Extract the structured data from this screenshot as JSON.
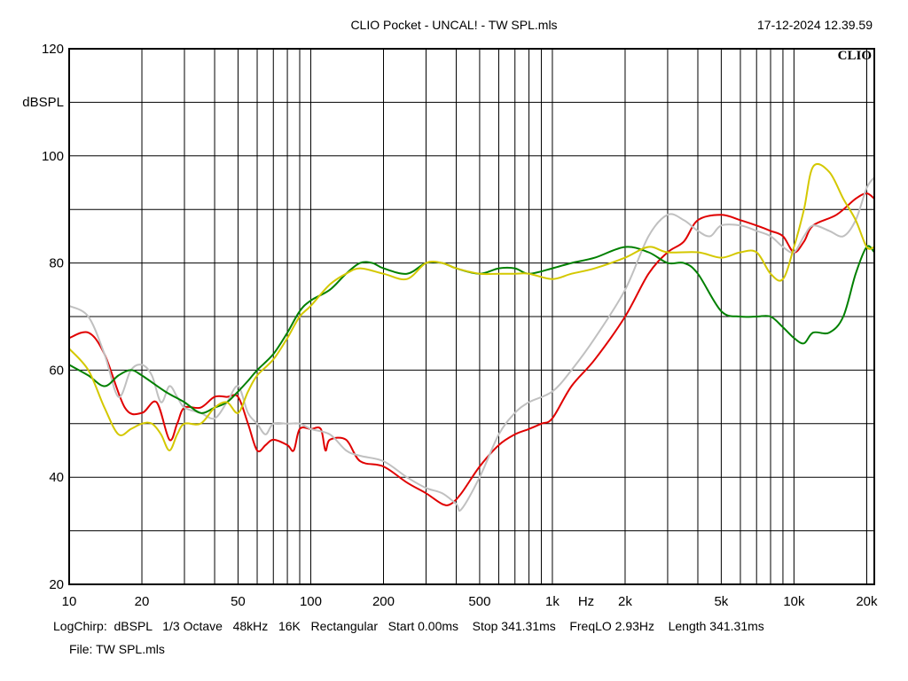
{
  "chart_data": {
    "type": "line",
    "title": "CLIO Pocket - UNCAL! - TW SPL.mls",
    "timestamp": "17-12-2024 12.39.59",
    "logo": "CLIO",
    "ylabel": "dBSPL",
    "xlabel": "Hz",
    "x_scale": "log",
    "xlim": [
      10,
      21500
    ],
    "ylim": [
      20,
      120
    ],
    "y_ticks": [
      "120",
      "100",
      "80",
      "60",
      "40",
      "20"
    ],
    "y_tick_values": [
      120,
      100,
      80,
      60,
      40,
      20
    ],
    "x_ticks": [
      "10",
      "20",
      "50",
      "100",
      "200",
      "500",
      "1k",
      "2k",
      "5k",
      "10k",
      "20k"
    ],
    "x_tick_values": [
      10,
      20,
      50,
      100,
      200,
      500,
      1000,
      2000,
      5000,
      10000,
      20000
    ],
    "grid": true,
    "footer_line1": "LogChirp:  dBSPL   1/3 Octave   48kHz   16K   Rectangular   Start 0.00ms    Stop 341.31ms    FreqLO 2.93Hz    Length 341.31ms",
    "footer_line2": "File: TW SPL.mls",
    "series": [
      {
        "color": "#e00000",
        "x": [
          10,
          12,
          14,
          17,
          20,
          23,
          26,
          28,
          30,
          35,
          40,
          45,
          50,
          55,
          60,
          65,
          70,
          80,
          85,
          90,
          100,
          110,
          115,
          120,
          140,
          160,
          200,
          250,
          300,
          350,
          380,
          420,
          500,
          600,
          700,
          800,
          900,
          1000,
          1200,
          1500,
          2000,
          2500,
          3000,
          3500,
          4000,
          5000,
          6000,
          7000,
          8000,
          9000,
          10000,
          11000,
          12000,
          15000,
          18000,
          20000,
          21500
        ],
        "y": [
          66,
          67,
          63,
          53,
          52,
          54,
          47,
          50,
          53,
          53,
          55,
          55,
          55,
          50,
          45,
          46,
          47,
          46,
          45,
          49,
          49,
          49,
          45,
          47,
          47,
          43,
          42,
          39,
          37,
          35,
          35,
          37,
          42,
          46,
          48,
          49,
          50,
          51,
          57,
          62,
          70,
          78,
          82,
          84,
          88,
          89,
          88,
          87,
          86,
          85,
          82,
          84,
          87,
          89,
          92,
          93,
          92
        ]
      },
      {
        "color": "#c0c0c0",
        "x": [
          10,
          12,
          14,
          16,
          18,
          20,
          22,
          24,
          26,
          28,
          30,
          35,
          40,
          45,
          50,
          55,
          60,
          65,
          70,
          80,
          90,
          100,
          120,
          140,
          160,
          200,
          250,
          300,
          350,
          400,
          420,
          500,
          600,
          700,
          800,
          1000,
          1200,
          1500,
          2000,
          2500,
          3000,
          3500,
          4000,
          4500,
          5000,
          6000,
          7000,
          8000,
          9000,
          10000,
          11000,
          12000,
          14000,
          16000,
          18000,
          20000,
          21500
        ],
        "y": [
          72,
          70,
          63,
          55,
          60,
          61,
          59,
          54,
          57,
          55,
          53,
          52,
          51,
          54,
          57,
          52,
          50,
          48,
          50,
          50,
          50,
          49,
          48,
          45,
          44,
          43,
          40,
          38,
          37,
          35,
          34,
          40,
          48,
          52,
          54,
          56,
          60,
          66,
          75,
          85,
          89,
          88,
          86,
          85,
          87,
          87,
          86,
          85,
          83,
          82,
          85,
          87,
          86,
          85,
          88,
          94,
          96
        ]
      },
      {
        "color": "#008000",
        "x": [
          10,
          12,
          14,
          16,
          18,
          20,
          25,
          30,
          35,
          40,
          45,
          50,
          55,
          60,
          70,
          80,
          90,
          100,
          120,
          140,
          160,
          180,
          200,
          250,
          300,
          350,
          400,
          500,
          600,
          700,
          800,
          1000,
          1200,
          1500,
          2000,
          2500,
          3000,
          3500,
          4000,
          5000,
          6000,
          7000,
          8000,
          9000,
          10000,
          11000,
          12000,
          14000,
          16000,
          18000,
          20000,
          21500
        ],
        "y": [
          61,
          59,
          57,
          59,
          60,
          59,
          56,
          54,
          52,
          53,
          54,
          56,
          58,
          60,
          63,
          67,
          71,
          73,
          75,
          78,
          80,
          80,
          79,
          78,
          80,
          80,
          79,
          78,
          79,
          79,
          78,
          79,
          80,
          81,
          83,
          82,
          80,
          80,
          78,
          71,
          70,
          70,
          70,
          68,
          66,
          65,
          67,
          67,
          70,
          78,
          83,
          82
        ]
      },
      {
        "color": "#d4c800",
        "x": [
          10,
          12,
          14,
          16,
          18,
          20,
          22,
          24,
          26,
          28,
          30,
          35,
          40,
          45,
          50,
          55,
          60,
          70,
          80,
          90,
          100,
          120,
          140,
          160,
          200,
          250,
          300,
          350,
          400,
          500,
          600,
          700,
          800,
          1000,
          1200,
          1500,
          2000,
          2500,
          3000,
          4000,
          5000,
          6000,
          7000,
          8000,
          9000,
          10000,
          11000,
          12000,
          14000,
          16000,
          18000,
          20000,
          21500
        ],
        "y": [
          64,
          60,
          53,
          48,
          49,
          50,
          50,
          48,
          45,
          48,
          50,
          50,
          53,
          54,
          52,
          56,
          59,
          62,
          66,
          70,
          72,
          76,
          78,
          79,
          78,
          77,
          80,
          80,
          79,
          78,
          78,
          78,
          78,
          77,
          78,
          79,
          81,
          83,
          82,
          82,
          81,
          82,
          82,
          78,
          77,
          83,
          90,
          98,
          97,
          92,
          88,
          83,
          83
        ]
      }
    ]
  }
}
